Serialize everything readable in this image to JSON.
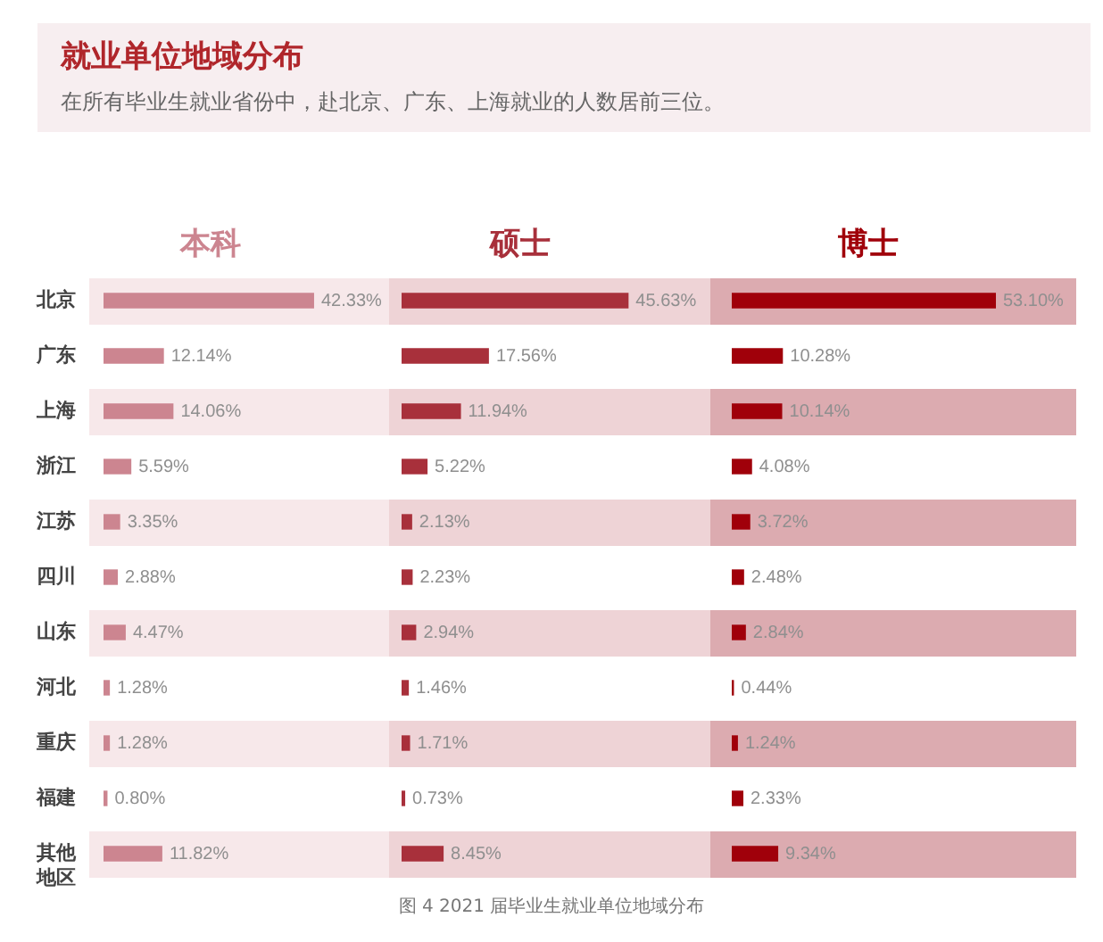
{
  "chart_data": [
    {
      "type": "other",
      "title": "就业单位地域分布",
      "subtitle": "在所有毕业生就业省份中，赴北京、广东、上海就业的人数居前三位。"
    },
    {
      "type": "bar",
      "orientation": "horizontal",
      "title": "本科",
      "categories": [
        "北京",
        "广东",
        "上海",
        "浙江",
        "江苏",
        "四川",
        "山东",
        "河北",
        "重庆",
        "福建",
        "其他地区"
      ],
      "values": [
        42.33,
        12.14,
        14.06,
        5.59,
        3.35,
        2.88,
        4.47,
        1.28,
        1.28,
        0.8,
        11.82
      ],
      "value_labels": [
        "42.33%",
        "12.14%",
        "14.06%",
        "5.59%",
        "3.35%",
        "2.88%",
        "4.47%",
        "1.28%",
        "1.28%",
        "0.80%",
        "11.82%"
      ],
      "color": "#cc8590",
      "tick_labels": "y"
    },
    {
      "type": "bar",
      "orientation": "horizontal",
      "title": "硕士",
      "categories": [
        "北京",
        "广东",
        "上海",
        "浙江",
        "江苏",
        "四川",
        "山东",
        "河北",
        "重庆",
        "福建",
        "其他地区"
      ],
      "values": [
        45.63,
        17.56,
        11.94,
        5.22,
        2.13,
        2.23,
        2.94,
        1.46,
        1.71,
        0.73,
        8.45
      ],
      "value_labels": [
        "45.63%",
        "17.56%",
        "11.94%",
        "5.22%",
        "2.13%",
        "2.23%",
        "2.94%",
        "1.46%",
        "1.71%",
        "0.73%",
        "8.45%"
      ],
      "color": "#a8303b",
      "tick_labels": false
    },
    {
      "type": "bar",
      "orientation": "horizontal",
      "title": "博士",
      "categories": [
        "北京",
        "广东",
        "上海",
        "浙江",
        "江苏",
        "四川",
        "山东",
        "河北",
        "重庆",
        "福建",
        "其他地区"
      ],
      "values": [
        53.1,
        10.28,
        10.14,
        4.08,
        3.72,
        2.48,
        2.84,
        0.44,
        1.24,
        2.33,
        9.34
      ],
      "value_labels": [
        "53.10%",
        "10.28%",
        "10.14%",
        "4.08%",
        "3.72%",
        "2.48%",
        "2.84%",
        "0.44%",
        "1.24%",
        "2.33%",
        "9.34%"
      ],
      "color": "#a0000a",
      "tick_labels": false
    },
    {
      "type": "other",
      "annotations": [
        "图 4  2021 届毕业生就业单位地域分布"
      ]
    }
  ]
}
